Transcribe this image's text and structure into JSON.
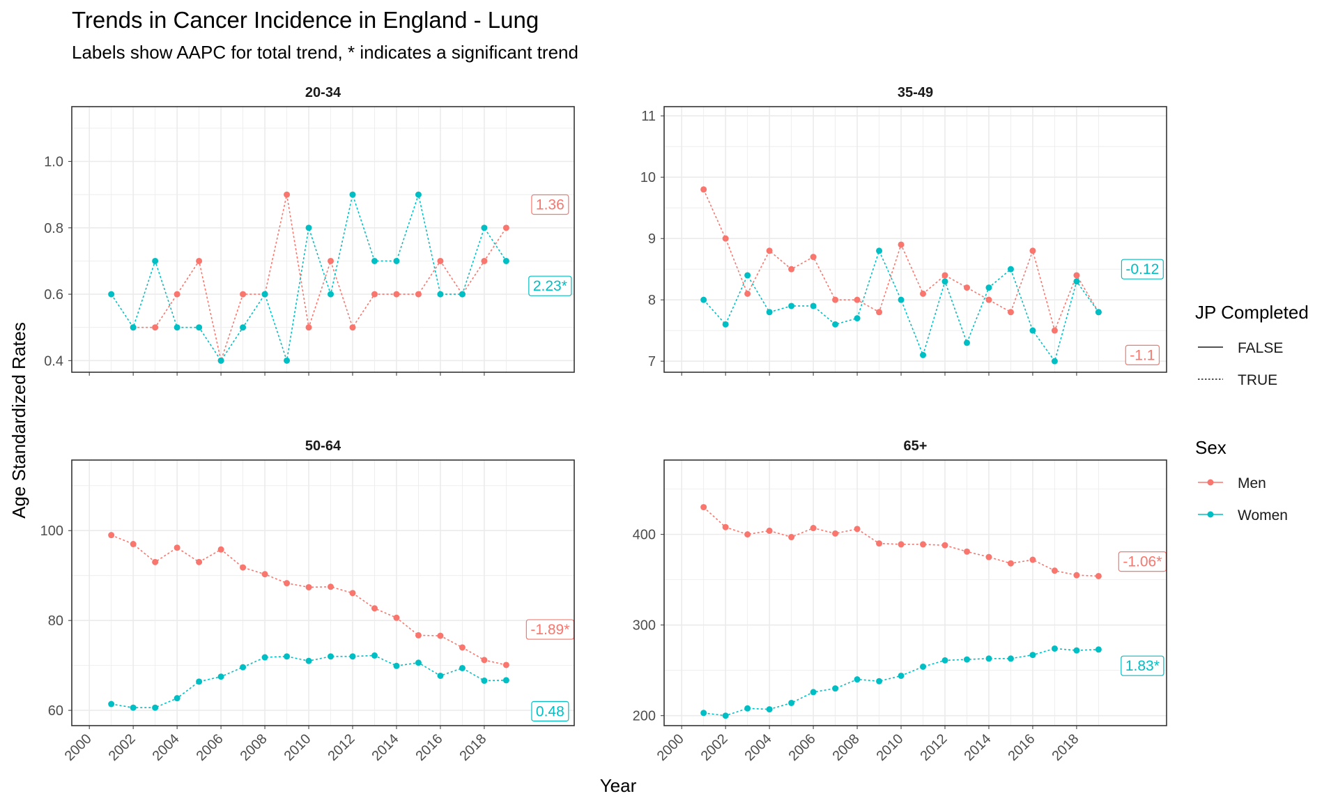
{
  "title": "Trends in Cancer Incidence in England - Lung",
  "subtitle": "Labels show AAPC for total trend, * indicates a significant trend",
  "colors": {
    "men": "#F8766D",
    "women": "#00BFC4",
    "grid": "#ebebeb",
    "panel_border": "#333333"
  },
  "legend": {
    "jp_title": "JP Completed",
    "jp_items": [
      {
        "label": "FALSE",
        "linetype": "solid"
      },
      {
        "label": "TRUE",
        "linetype": "dotted"
      }
    ],
    "sex_title": "Sex",
    "sex_items": [
      {
        "label": "Men",
        "color_key": "men"
      },
      {
        "label": "Women",
        "color_key": "women"
      }
    ]
  },
  "chart_data": {
    "type": "line",
    "xlabel": "Year",
    "ylabel": "Age Standardized Rates",
    "x_ticks": [
      "2000",
      "2002",
      "2004",
      "2006",
      "2008",
      "2010",
      "2012",
      "2014",
      "2016",
      "2018"
    ],
    "xlim": [
      1999.2,
      2022.1
    ],
    "grid": true,
    "legend_position": "right",
    "panels": [
      {
        "strip": "20-34",
        "ylim": [
          0.365,
          1.165
        ],
        "y_ticks": [
          0.4,
          0.6,
          0.8,
          1.0
        ],
        "y_tick_labels": [
          "0.4",
          "0.6",
          "0.8",
          "1.0"
        ],
        "x": [
          2001,
          2002,
          2003,
          2004,
          2005,
          2006,
          2007,
          2008,
          2009,
          2010,
          2011,
          2012,
          2013,
          2014,
          2015,
          2016,
          2017,
          2018,
          2019
        ],
        "series": [
          {
            "name": "Men",
            "color_key": "men",
            "jp_completed": "TRUE",
            "values": [
              null,
              0.5,
              0.5,
              0.6,
              0.7,
              0.4,
              0.6,
              0.6,
              0.9,
              0.5,
              0.7,
              0.5,
              0.6,
              0.6,
              0.6,
              0.7,
              0.6,
              0.7,
              0.8
            ],
            "aapc_label": "1.36",
            "aapc_y": 0.87
          },
          {
            "name": "Women",
            "color_key": "women",
            "jp_completed": "TRUE",
            "values": [
              0.6,
              0.5,
              0.7,
              0.5,
              0.5,
              0.4,
              0.5,
              0.6,
              0.4,
              0.8,
              0.6,
              0.9,
              0.7,
              0.7,
              0.9,
              0.6,
              0.6,
              0.8,
              0.7
            ],
            "aapc_label": "2.23*",
            "aapc_y": 0.625
          }
        ]
      },
      {
        "strip": "35-49",
        "ylim": [
          6.82,
          11.15
        ],
        "y_ticks": [
          7,
          8,
          9,
          10,
          11
        ],
        "y_tick_labels": [
          "7",
          "8",
          "9",
          "10",
          "11"
        ],
        "x": [
          2001,
          2002,
          2003,
          2004,
          2005,
          2006,
          2007,
          2008,
          2009,
          2010,
          2011,
          2012,
          2013,
          2014,
          2015,
          2016,
          2017,
          2018,
          2019
        ],
        "series": [
          {
            "name": "Men",
            "color_key": "men",
            "jp_completed": "TRUE",
            "values": [
              9.8,
              9.0,
              8.1,
              8.8,
              8.5,
              8.7,
              8.0,
              8.0,
              7.8,
              8.9,
              8.1,
              8.4,
              8.2,
              8.0,
              7.8,
              8.8,
              7.5,
              8.4,
              7.8
            ],
            "aapc_label": "-1.1",
            "aapc_y": 7.1
          },
          {
            "name": "Women",
            "color_key": "women",
            "jp_completed": "TRUE",
            "values": [
              8.0,
              7.6,
              8.4,
              7.8,
              7.9,
              7.9,
              7.6,
              7.7,
              8.8,
              8.0,
              7.1,
              8.3,
              7.3,
              8.2,
              8.5,
              7.5,
              7.0,
              8.3,
              7.8
            ],
            "aapc_label": "-0.12",
            "aapc_y": 8.5
          }
        ]
      },
      {
        "strip": "50-64",
        "ylim": [
          56.6,
          115.7
        ],
        "y_ticks": [
          60,
          80,
          100
        ],
        "y_tick_labels": [
          "60",
          "80",
          "100"
        ],
        "x": [
          2001,
          2002,
          2003,
          2004,
          2005,
          2006,
          2007,
          2008,
          2009,
          2010,
          2011,
          2012,
          2013,
          2014,
          2015,
          2016,
          2017,
          2018,
          2019
        ],
        "series": [
          {
            "name": "Men",
            "color_key": "men",
            "jp_completed": "TRUE",
            "values": [
              99.0,
              97.0,
              93.0,
              96.2,
              93.0,
              95.8,
              91.8,
              90.3,
              88.3,
              87.4,
              87.5,
              86.1,
              82.7,
              80.6,
              76.7,
              76.6,
              74.0,
              71.2,
              70.1
            ],
            "aapc_label": "-1.89*",
            "aapc_y": 78.0
          },
          {
            "name": "Women",
            "color_key": "women",
            "jp_completed": "TRUE",
            "values": [
              61.4,
              60.6,
              60.6,
              62.7,
              66.4,
              67.5,
              69.6,
              71.8,
              72.0,
              71.0,
              72.0,
              72.0,
              72.2,
              69.9,
              70.6,
              67.7,
              69.4,
              66.6,
              66.7
            ],
            "aapc_label": "0.48",
            "aapc_y": 59.8
          }
        ]
      },
      {
        "strip": "65+",
        "ylim": [
          189,
          482
        ],
        "y_ticks": [
          200,
          300,
          400
        ],
        "y_tick_labels": [
          "200",
          "300",
          "400"
        ],
        "x": [
          2001,
          2002,
          2003,
          2004,
          2005,
          2006,
          2007,
          2008,
          2009,
          2010,
          2011,
          2012,
          2013,
          2014,
          2015,
          2016,
          2017,
          2018,
          2019
        ],
        "series": [
          {
            "name": "Men",
            "color_key": "men",
            "jp_completed": "TRUE",
            "values": [
              430,
              408,
              400,
              404,
              397,
              407,
              401,
              406,
              390,
              389,
              389,
              388,
              381,
              375,
              368,
              372,
              360,
              355,
              354
            ],
            "aapc_label": "-1.06*",
            "aapc_y": 370
          },
          {
            "name": "Women",
            "color_key": "women",
            "jp_completed": "TRUE",
            "values": [
              203,
              200,
              208,
              207,
              214,
              226,
              230,
              240,
              238,
              244,
              254,
              261,
              262,
              263,
              263,
              267,
              274,
              272,
              273
            ],
            "aapc_label": "1.83*",
            "aapc_y": 255
          }
        ]
      }
    ]
  }
}
